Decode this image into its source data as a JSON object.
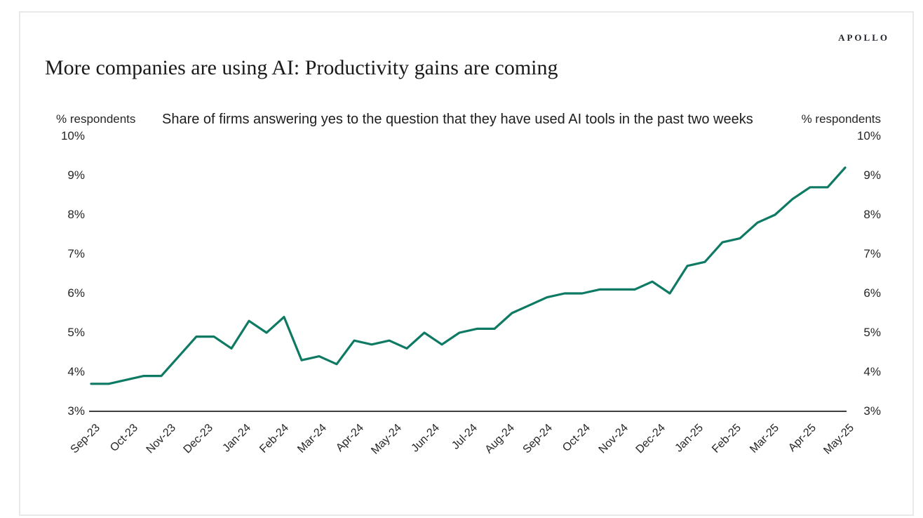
{
  "brand": {
    "logo_text": "APOLLO"
  },
  "title": "More companies are using AI: Productivity gains are coming",
  "subtitle": "Share of firms answering yes to the question that they have used AI tools in the past two weeks",
  "y_axis": {
    "unit_label": "% respondents",
    "tick_labels": [
      "10%",
      "9%",
      "8%",
      "7%",
      "6%",
      "5%",
      "4%",
      "3%"
    ]
  },
  "colors": {
    "line": "#0e7a63",
    "axis": "#3f3f3f",
    "text": "#262626",
    "frame_border": "#e9e9e9",
    "background": "#ffffff"
  },
  "chart_data": {
    "type": "line",
    "title": "More companies are using AI: Productivity gains are coming",
    "subtitle": "Share of firms answering yes to the question that they have used AI tools in the past two weeks",
    "xlabel": "",
    "ylabel": "% respondents",
    "ylim": [
      3,
      10
    ],
    "y_unit": "%",
    "grid": false,
    "legend": "none",
    "line_color": "#0e7a63",
    "x_tick_labels": [
      "Sep-23",
      "Oct-23",
      "Nov-23",
      "Dec-23",
      "Jan-24",
      "Feb-24",
      "Mar-24",
      "Apr-24",
      "May-24",
      "Jun-24",
      "Jul-24",
      "Aug-24",
      "Sep-24",
      "Oct-24",
      "Nov-24",
      "Dec-24",
      "Jan-25",
      "Feb-25",
      "Mar-25",
      "Apr-25",
      "May-25"
    ],
    "sampling": "biweekly survey readings from Sep-23 through May-25",
    "series": [
      {
        "name": "Share of firms that used AI tools in the past two weeks (%)",
        "values": [
          3.7,
          3.7,
          3.8,
          3.9,
          3.9,
          4.4,
          4.9,
          4.9,
          4.6,
          5.3,
          5.0,
          5.4,
          4.3,
          4.4,
          4.2,
          4.8,
          4.7,
          4.8,
          4.6,
          5.0,
          4.7,
          5.0,
          5.1,
          5.1,
          5.5,
          5.7,
          5.9,
          6.0,
          6.0,
          6.1,
          6.1,
          6.1,
          6.3,
          6.0,
          6.7,
          6.8,
          7.3,
          7.4,
          7.8,
          8.0,
          8.4,
          8.7,
          8.7,
          9.2
        ]
      }
    ]
  }
}
